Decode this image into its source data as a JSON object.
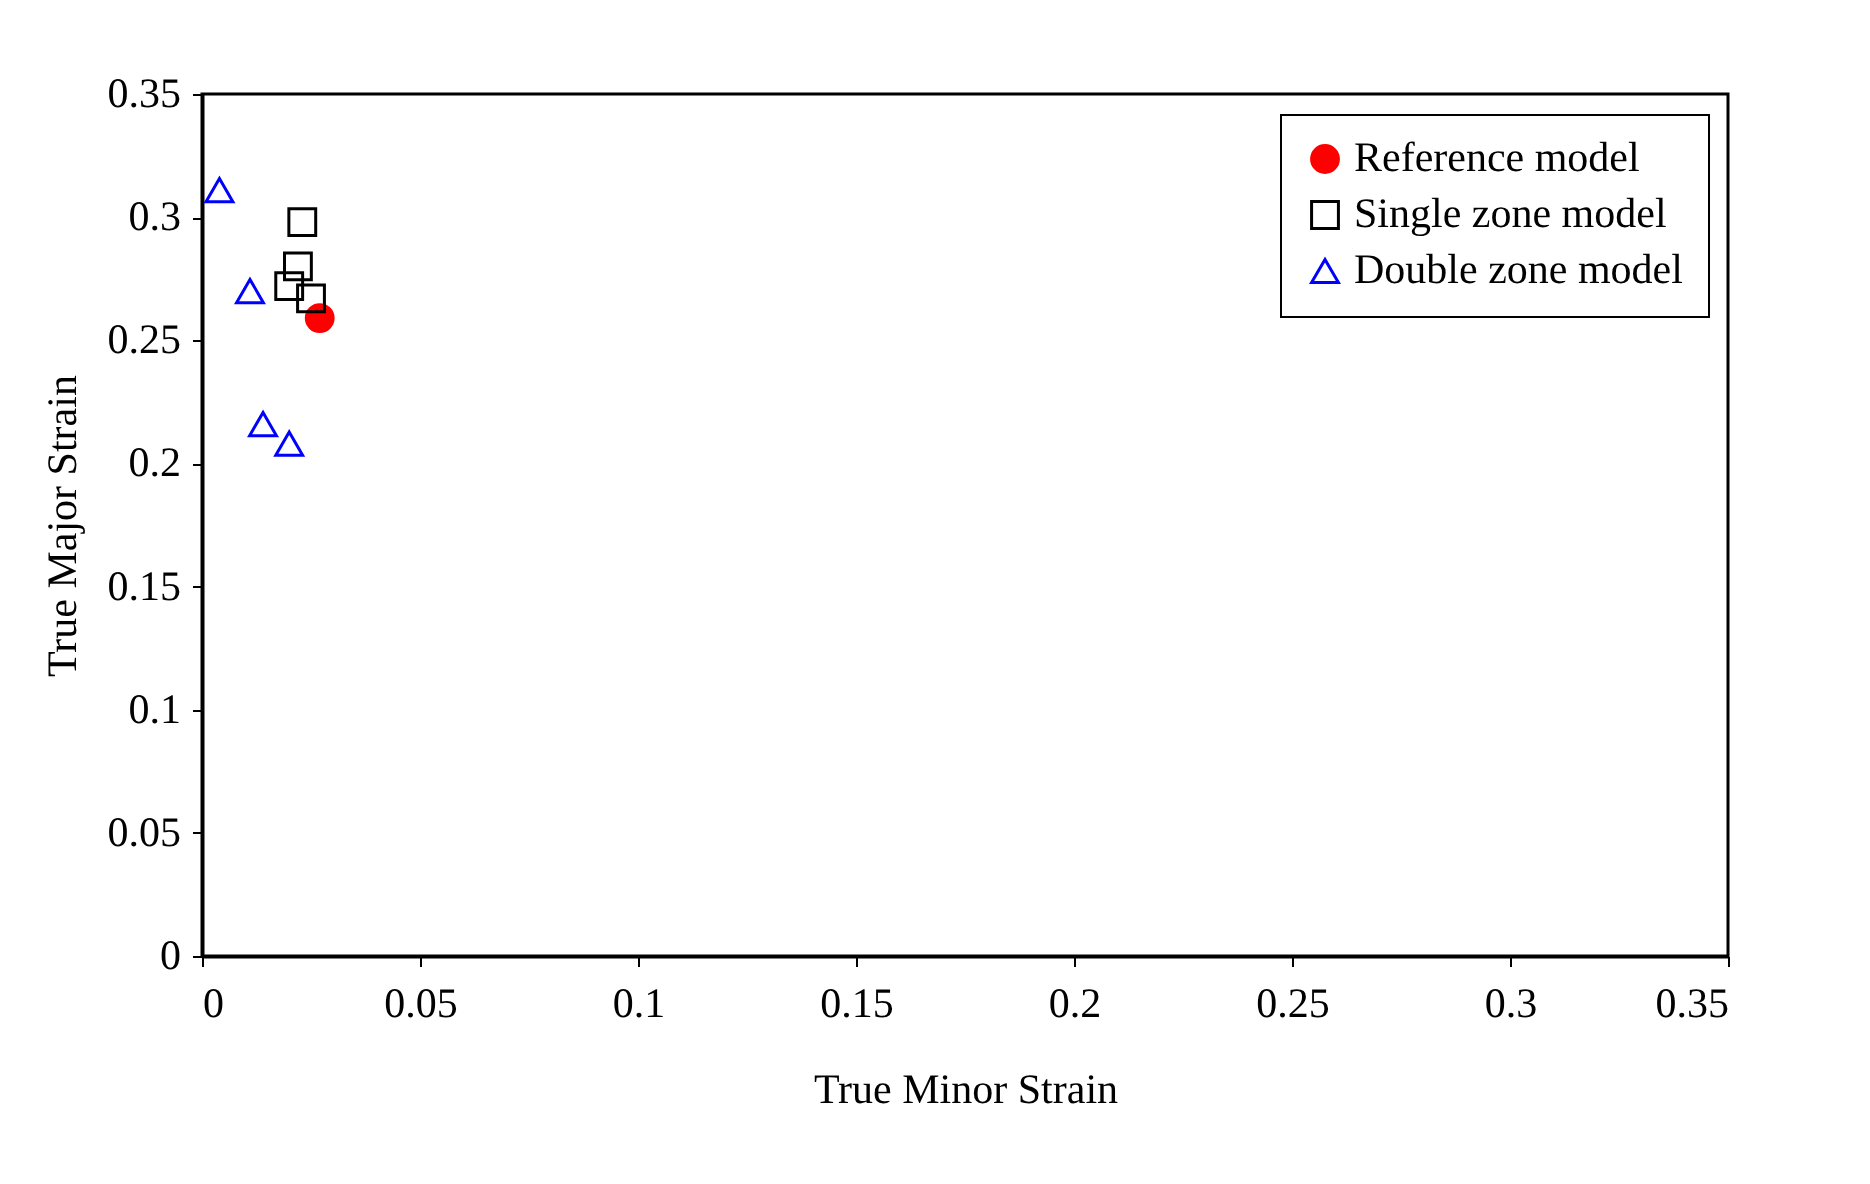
{
  "chart_data": {
    "type": "scatter",
    "xlabel": "True Minor Strain",
    "ylabel": "True Major Strain",
    "xlim": [
      0,
      0.35
    ],
    "ylim": [
      0,
      0.35
    ],
    "xticks": [
      0,
      0.05,
      0.1,
      0.15,
      0.2,
      0.25,
      0.3,
      0.35
    ],
    "yticks": [
      0,
      0.05,
      0.1,
      0.15,
      0.2,
      0.25,
      0.3,
      0.35
    ],
    "grid": false,
    "legend": "top right",
    "series": [
      {
        "name": "Reference model",
        "color": "#ff0000",
        "marker": "circle",
        "x": [
          0.027
        ],
        "values": [
          0.259
        ]
      },
      {
        "name": "Single zone model",
        "color": "#000000",
        "marker": "square",
        "x": [
          0.023,
          0.022,
          0.02,
          0.025
        ],
        "values": [
          0.298,
          0.28,
          0.272,
          0.267
        ]
      },
      {
        "name": "Double zone model",
        "color": "#0000ff",
        "marker": "triangle",
        "x": [
          0.004,
          0.011,
          0.014,
          0.02
        ],
        "values": [
          0.311,
          0.27,
          0.216,
          0.208
        ]
      }
    ]
  }
}
